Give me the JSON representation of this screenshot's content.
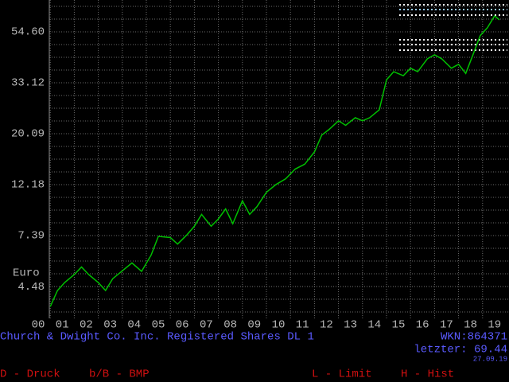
{
  "chart_data": {
    "type": "line",
    "log_scale": true,
    "grid": true,
    "y_unit": "Euro",
    "xlim": [
      2000.96,
      2020.1
    ],
    "ylim": [
      3.28,
      74.6
    ],
    "xticks": [
      {
        "value": 2000,
        "label": "00"
      },
      {
        "value": 2001,
        "label": "01"
      },
      {
        "value": 2002,
        "label": "02"
      },
      {
        "value": 2003,
        "label": "03"
      },
      {
        "value": 2004,
        "label": "04"
      },
      {
        "value": 2005,
        "label": "05"
      },
      {
        "value": 2006,
        "label": "06"
      },
      {
        "value": 2007,
        "label": "07"
      },
      {
        "value": 2008,
        "label": "08"
      },
      {
        "value": 2009,
        "label": "09"
      },
      {
        "value": 2010,
        "label": "10"
      },
      {
        "value": 2011,
        "label": "11"
      },
      {
        "value": 2012,
        "label": "12"
      },
      {
        "value": 2013,
        "label": "13"
      },
      {
        "value": 2014,
        "label": "14"
      },
      {
        "value": 2015,
        "label": "15"
      },
      {
        "value": 2016,
        "label": "16"
      },
      {
        "value": 2017,
        "label": "17"
      },
      {
        "value": 2018,
        "label": "18"
      },
      {
        "value": 2019,
        "label": "19"
      }
    ],
    "yticks": [
      {
        "value": 4.48,
        "label": "4.48"
      },
      {
        "value": 7.39,
        "label": "7.39"
      },
      {
        "value": 12.18,
        "label": "12.18"
      },
      {
        "value": 20.09,
        "label": "20.09"
      },
      {
        "value": 33.12,
        "label": "33.12"
      },
      {
        "value": 54.6,
        "label": "54.60"
      }
    ],
    "series": [
      {
        "name": "Church & Dwight Co. Inc. Registered Shares DL 1",
        "color": "#00c000",
        "x": [
          2001.0,
          2001.3,
          2001.6,
          2002.0,
          2002.3,
          2002.6,
          2003.0,
          2003.3,
          2003.6,
          2004.0,
          2004.4,
          2004.8,
          2005.2,
          2005.5,
          2006.0,
          2006.3,
          2006.7,
          2007.0,
          2007.3,
          2007.7,
          2008.0,
          2008.3,
          2008.6,
          2009.0,
          2009.3,
          2009.6,
          2010.0,
          2010.4,
          2010.8,
          2011.2,
          2011.6,
          2012.0,
          2012.3,
          2012.6,
          2013.0,
          2013.3,
          2013.7,
          2014.0,
          2014.3,
          2014.7,
          2015.0,
          2015.3,
          2015.7,
          2016.0,
          2016.3,
          2016.7,
          2017.0,
          2017.3,
          2017.7,
          2018.0,
          2018.3,
          2018.6,
          2018.9,
          2019.2,
          2019.5,
          2019.7
        ],
        "values": [
          3.68,
          4.31,
          4.66,
          5.04,
          5.43,
          5.04,
          4.66,
          4.31,
          4.84,
          5.23,
          5.65,
          5.2,
          6.1,
          7.33,
          7.25,
          6.8,
          7.46,
          8.1,
          9.1,
          8.1,
          8.7,
          9.6,
          8.3,
          10.4,
          9.1,
          9.8,
          11.3,
          12.2,
          12.9,
          14.2,
          14.9,
          16.8,
          19.8,
          20.9,
          22.8,
          21.8,
          23.5,
          22.8,
          23.5,
          25.4,
          34.1,
          36.9,
          35.5,
          38.2,
          36.9,
          41.9,
          43.6,
          41.9,
          38.2,
          39.7,
          36.3,
          43.6,
          52.6,
          56.8,
          63.8,
          61.4
        ]
      }
    ],
    "info": {
      "wkn": "WKN:864371",
      "last": "letzter: 69.44",
      "date": "27.09.19"
    },
    "keys": [
      "D - Druck",
      "b/B - BMP",
      "L - Limit",
      "H - Hist"
    ]
  }
}
